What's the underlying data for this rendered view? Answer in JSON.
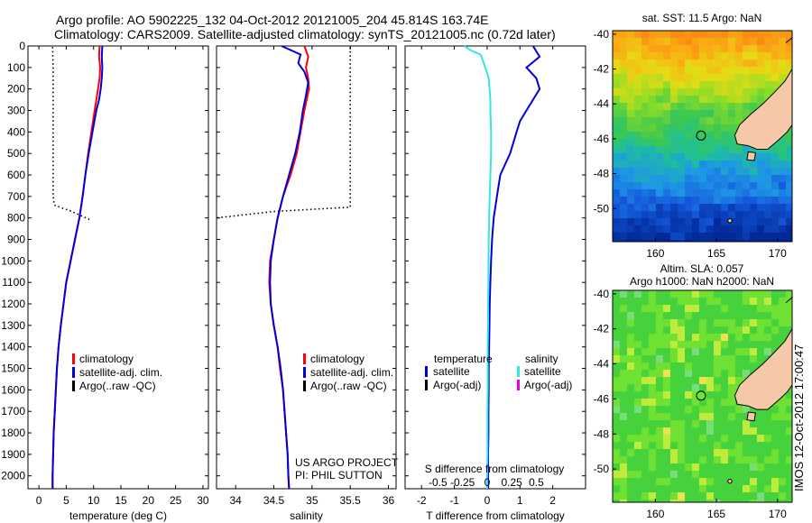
{
  "header": {
    "line1": "Argo profile: AO 5902225_132 04-Oct-2012 20121005_204 45.814S 163.74E",
    "line2": "Climatology: CARS2009. Satellite-adjusted climatology: synTS_20121005.nc (0.72d later)"
  },
  "colors": {
    "climatology": "#ff0000",
    "satellite": "#0000dd",
    "argo": "#000000",
    "satellite_s_diff": "#33e6e6",
    "argo_s_diff": "#e600e6"
  },
  "chart_data": [
    {
      "type": "line",
      "name": "temperature-profile",
      "xlabel": "temperature (deg C)",
      "ylabel": "",
      "xlim": [
        -2,
        31
      ],
      "ylim": [
        2060,
        0
      ],
      "x_ticks": [
        0,
        5,
        10,
        15,
        20,
        25,
        30
      ],
      "y_ticks": [
        0,
        100,
        200,
        300,
        400,
        500,
        600,
        700,
        800,
        900,
        1000,
        1100,
        1200,
        1300,
        1400,
        1500,
        1600,
        1700,
        1800,
        1900,
        2000
      ],
      "legend": {
        "placement": "lower-center",
        "entries": [
          "climatology",
          "satellite-adj. clim.",
          "Argo(..raw -QC)"
        ]
      },
      "series": [
        {
          "name": "climatology",
          "style": "solid",
          "points": [
            [
              11.1,
              0
            ],
            [
              11.0,
              50
            ],
            [
              11.2,
              100
            ],
            [
              11.1,
              150
            ],
            [
              10.8,
              200
            ],
            [
              10.5,
              250
            ],
            [
              10.2,
              300
            ],
            [
              9.6,
              400
            ],
            [
              9.0,
              500
            ],
            [
              8.5,
              600
            ],
            [
              8.0,
              700
            ],
            [
              7.4,
              800
            ],
            [
              6.6,
              900
            ],
            [
              5.8,
              1000
            ],
            [
              5.0,
              1100
            ],
            [
              4.5,
              1200
            ],
            [
              4.0,
              1300
            ],
            [
              3.6,
              1400
            ],
            [
              3.3,
              1500
            ],
            [
              3.1,
              1600
            ],
            [
              2.9,
              1700
            ],
            [
              2.7,
              1800
            ],
            [
              2.6,
              1900
            ],
            [
              2.5,
              2000
            ],
            [
              2.5,
              2060
            ]
          ]
        },
        {
          "name": "satellite-adj. clim.",
          "style": "solid",
          "points": [
            [
              11.6,
              0
            ],
            [
              11.5,
              50
            ],
            [
              11.6,
              100
            ],
            [
              11.5,
              150
            ],
            [
              11.3,
              200
            ],
            [
              11.0,
              250
            ],
            [
              10.5,
              300
            ],
            [
              9.8,
              400
            ],
            [
              9.1,
              500
            ],
            [
              8.5,
              600
            ],
            [
              8.0,
              700
            ],
            [
              7.4,
              800
            ],
            [
              6.6,
              900
            ],
            [
              5.8,
              1000
            ],
            [
              5.0,
              1100
            ],
            [
              4.5,
              1200
            ],
            [
              4.0,
              1300
            ],
            [
              3.6,
              1400
            ],
            [
              3.3,
              1500
            ],
            [
              3.1,
              1600
            ],
            [
              2.9,
              1700
            ],
            [
              2.7,
              1800
            ],
            [
              2.6,
              1900
            ],
            [
              2.5,
              2000
            ],
            [
              2.5,
              2060
            ]
          ]
        },
        {
          "name": "Argo(..raw -QC)",
          "style": "dotted",
          "points": [
            [
              2.5,
              5
            ],
            [
              2.6,
              100
            ],
            [
              2.6,
              200
            ],
            [
              2.6,
              300
            ],
            [
              2.6,
              400
            ],
            [
              2.6,
              500
            ],
            [
              2.6,
              600
            ],
            [
              2.6,
              700
            ],
            [
              2.8,
              740
            ],
            [
              6.0,
              770
            ],
            [
              9.5,
              810
            ]
          ]
        }
      ]
    },
    {
      "type": "line",
      "name": "salinity-profile",
      "xlabel": "salinity",
      "ylabel": "",
      "xlim": [
        33.75,
        36.1
      ],
      "ylim": [
        2060,
        0
      ],
      "x_ticks": [
        34,
        34.5,
        35,
        35.5,
        36
      ],
      "annotation": [
        "US ARGO PROJECT",
        "PI: PHIL SUTTON"
      ],
      "legend": {
        "placement": "lower-right",
        "entries": [
          "climatology",
          "satellite-adj. clim.",
          "Argo(..raw -QC)"
        ]
      },
      "series": [
        {
          "name": "climatology",
          "style": "solid",
          "points": [
            [
              34.9,
              0
            ],
            [
              34.95,
              50
            ],
            [
              34.92,
              100
            ],
            [
              34.95,
              150
            ],
            [
              34.96,
              200
            ],
            [
              34.93,
              250
            ],
            [
              34.9,
              300
            ],
            [
              34.85,
              400
            ],
            [
              34.8,
              500
            ],
            [
              34.72,
              600
            ],
            [
              34.62,
              700
            ],
            [
              34.55,
              800
            ],
            [
              34.5,
              900
            ],
            [
              34.45,
              1000
            ],
            [
              34.44,
              1100
            ],
            [
              34.46,
              1200
            ],
            [
              34.5,
              1300
            ],
            [
              34.55,
              1400
            ],
            [
              34.58,
              1500
            ],
            [
              34.62,
              1600
            ],
            [
              34.64,
              1700
            ],
            [
              34.66,
              1800
            ],
            [
              34.68,
              1900
            ],
            [
              34.69,
              2000
            ],
            [
              34.7,
              2060
            ]
          ]
        },
        {
          "name": "satellite-adj. clim.",
          "style": "solid",
          "points": [
            [
              34.6,
              0
            ],
            [
              34.85,
              40
            ],
            [
              34.82,
              80
            ],
            [
              34.9,
              120
            ],
            [
              34.95,
              170
            ],
            [
              34.92,
              230
            ],
            [
              34.88,
              300
            ],
            [
              34.84,
              400
            ],
            [
              34.78,
              500
            ],
            [
              34.7,
              600
            ],
            [
              34.62,
              700
            ],
            [
              34.55,
              800
            ],
            [
              34.5,
              900
            ],
            [
              34.46,
              1000
            ],
            [
              34.45,
              1100
            ],
            [
              34.46,
              1200
            ],
            [
              34.5,
              1300
            ],
            [
              34.55,
              1400
            ],
            [
              34.59,
              1500
            ],
            [
              34.62,
              1600
            ],
            [
              34.64,
              1700
            ],
            [
              34.66,
              1800
            ],
            [
              34.68,
              1900
            ],
            [
              34.69,
              2000
            ],
            [
              34.7,
              2060
            ]
          ]
        },
        {
          "name": "Argo(..raw -QC)",
          "style": "dotted",
          "points": [
            [
              35.5,
              5
            ],
            [
              35.5,
              100
            ],
            [
              35.5,
              300
            ],
            [
              35.5,
              500
            ],
            [
              35.5,
              700
            ],
            [
              35.5,
              750
            ],
            [
              34.5,
              770
            ],
            [
              33.75,
              800
            ]
          ]
        }
      ]
    },
    {
      "type": "line",
      "name": "difference-profile",
      "xlabel": "T difference from climatology",
      "xlabel_top": "S difference from climatology",
      "ylabel": "",
      "xlim": [
        -2.5,
        3
      ],
      "ylim": [
        2060,
        0
      ],
      "x_ticks": [
        -2,
        -1,
        0,
        1,
        2
      ],
      "x_ticks_top": [
        {
          "value": -1.5,
          "label": "-0.5"
        },
        {
          "value": -0.75,
          "label": "-0.25"
        },
        {
          "value": 0,
          "label": "0"
        },
        {
          "value": 0.75,
          "label": "0.25"
        },
        {
          "value": 1.5,
          "label": "0.5"
        }
      ],
      "legend": {
        "placement": "lower",
        "columns": [
          {
            "title": "temperature",
            "entries": [
              "satellite",
              "Argo(-adj)"
            ]
          },
          {
            "title": "salinity",
            "entries": [
              "satellite",
              "Argo(-adj)"
            ]
          }
        ]
      },
      "series": [
        {
          "name": "temperature satellite",
          "points": [
            [
              1.4,
              0
            ],
            [
              1.6,
              50
            ],
            [
              1.2,
              100
            ],
            [
              1.5,
              150
            ],
            [
              1.6,
              200
            ],
            [
              1.4,
              250
            ],
            [
              1.2,
              300
            ],
            [
              1.0,
              350
            ],
            [
              0.9,
              400
            ],
            [
              0.7,
              500
            ],
            [
              0.4,
              600
            ],
            [
              0.3,
              700
            ],
            [
              0.2,
              800
            ],
            [
              0.15,
              900
            ],
            [
              0.12,
              1000
            ],
            [
              0.1,
              1100
            ],
            [
              0.08,
              1200
            ],
            [
              0.07,
              1300
            ],
            [
              0.06,
              1400
            ],
            [
              0.05,
              1500
            ],
            [
              0.05,
              1600
            ],
            [
              0.04,
              1700
            ],
            [
              0.04,
              1800
            ],
            [
              0.03,
              1900
            ],
            [
              0.03,
              2000
            ],
            [
              0.03,
              2060
            ]
          ]
        },
        {
          "name": "salinity satellite",
          "points": [
            [
              -0.7,
              0
            ],
            [
              -0.5,
              20
            ],
            [
              -0.2,
              40
            ],
            [
              -0.1,
              80
            ],
            [
              0.05,
              150
            ],
            [
              0.1,
              250
            ],
            [
              0.1,
              300
            ],
            [
              0.12,
              400
            ],
            [
              0.12,
              500
            ],
            [
              0.1,
              600
            ],
            [
              0.08,
              700
            ],
            [
              0.06,
              800
            ],
            [
              0.05,
              900
            ],
            [
              0.04,
              1000
            ],
            [
              0.04,
              1100
            ],
            [
              0.03,
              1200
            ],
            [
              0.03,
              1300
            ],
            [
              0.02,
              1400
            ],
            [
              0.02,
              1500
            ],
            [
              0.02,
              1600
            ],
            [
              0.01,
              1700
            ],
            [
              0.01,
              1800
            ],
            [
              0.01,
              1900
            ],
            [
              0.0,
              2000
            ],
            [
              0.0,
              2060
            ]
          ]
        }
      ]
    },
    {
      "type": "heatmap",
      "name": "sst-map",
      "title": "sat. SST: 11.5 Argo: NaN",
      "xlim": [
        156.5,
        171.2
      ],
      "ylim": [
        -51.9,
        -39.8
      ],
      "x_ticks": [
        160,
        165,
        170
      ],
      "y_ticks": [
        -40,
        -42,
        -44,
        -46,
        -48,
        -50
      ],
      "marker": {
        "lon": 163.74,
        "lat": -45.814
      }
    },
    {
      "type": "heatmap",
      "name": "sla-map",
      "title_lines": [
        "Altim. SLA: 0.057",
        "Argo h1000: NaN h2000: NaN"
      ],
      "xlim": [
        156.5,
        171.2
      ],
      "ylim": [
        -51.9,
        -39.8
      ],
      "x_ticks": [
        160,
        165,
        170
      ],
      "y_ticks": [
        -40,
        -42,
        -44,
        -46,
        -48,
        -50
      ],
      "marker": {
        "lon": 163.74,
        "lat": -45.814
      }
    }
  ],
  "side_label": "IMOS 12-Oct-2012 17:00:47"
}
